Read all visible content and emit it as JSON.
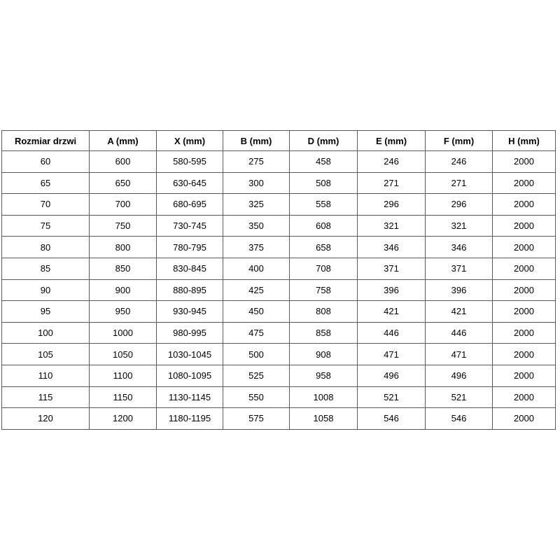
{
  "colors": {
    "background": "#ffffff",
    "border": "#595959",
    "text": "#000000"
  },
  "chart_data": {
    "type": "table",
    "title": "",
    "columns": [
      "Rozmiar drzwi",
      "A (mm)",
      "X (mm)",
      "B (mm)",
      "D (mm)",
      "E (mm)",
      "F (mm)",
      "H (mm)"
    ],
    "rows": [
      [
        "60",
        "600",
        "580-595",
        "275",
        "458",
        "246",
        "246",
        "2000"
      ],
      [
        "65",
        "650",
        "630-645",
        "300",
        "508",
        "271",
        "271",
        "2000"
      ],
      [
        "70",
        "700",
        "680-695",
        "325",
        "558",
        "296",
        "296",
        "2000"
      ],
      [
        "75",
        "750",
        "730-745",
        "350",
        "608",
        "321",
        "321",
        "2000"
      ],
      [
        "80",
        "800",
        "780-795",
        "375",
        "658",
        "346",
        "346",
        "2000"
      ],
      [
        "85",
        "850",
        "830-845",
        "400",
        "708",
        "371",
        "371",
        "2000"
      ],
      [
        "90",
        "900",
        "880-895",
        "425",
        "758",
        "396",
        "396",
        "2000"
      ],
      [
        "95",
        "950",
        "930-945",
        "450",
        "808",
        "421",
        "421",
        "2000"
      ],
      [
        "100",
        "1000",
        "980-995",
        "475",
        "858",
        "446",
        "446",
        "2000"
      ],
      [
        "105",
        "1050",
        "1030-1045",
        "500",
        "908",
        "471",
        "471",
        "2000"
      ],
      [
        "110",
        "1100",
        "1080-1095",
        "525",
        "958",
        "496",
        "496",
        "2000"
      ],
      [
        "115",
        "1150",
        "1130-1145",
        "550",
        "1008",
        "521",
        "521",
        "2000"
      ],
      [
        "120",
        "1200",
        "1180-1195",
        "575",
        "1058",
        "546",
        "546",
        "2000"
      ]
    ]
  }
}
